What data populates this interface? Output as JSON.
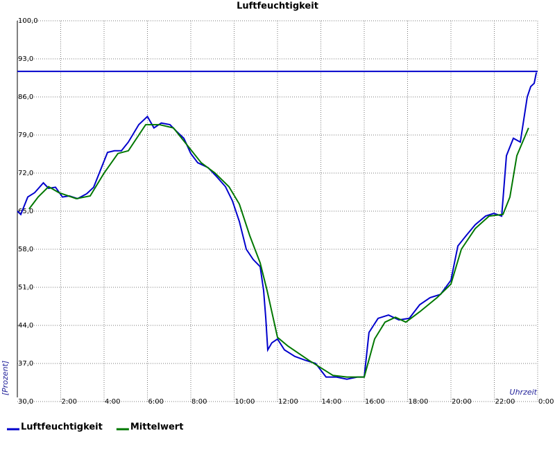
{
  "chart_data": {
    "type": "line",
    "title": "Luftfeuchtigkeit",
    "ylabel": "[Prozent]",
    "xlabel": "Uhrzeit",
    "xlim": [
      0,
      24
    ],
    "ylim": [
      30,
      100
    ],
    "yticks": [
      {
        "value": 30,
        "label": "30,0"
      },
      {
        "value": 37,
        "label": "37,0"
      },
      {
        "value": 44,
        "label": "44,0"
      },
      {
        "value": 51,
        "label": "51,0"
      },
      {
        "value": 58,
        "label": "58,0"
      },
      {
        "value": 65,
        "label": "65,0"
      },
      {
        "value": 72,
        "label": "72,0"
      },
      {
        "value": 79,
        "label": "79,0"
      },
      {
        "value": 86,
        "label": "86,0"
      },
      {
        "value": 93,
        "label": "93,0"
      },
      {
        "value": 100,
        "label": "100,0"
      }
    ],
    "xticks": [
      {
        "value": 2,
        "label": "2:00"
      },
      {
        "value": 4,
        "label": "4:00"
      },
      {
        "value": 6,
        "label": "6:00"
      },
      {
        "value": 8,
        "label": "8:00"
      },
      {
        "value": 10,
        "label": "10:00"
      },
      {
        "value": 12,
        "label": "12:00"
      },
      {
        "value": 14,
        "label": "14:00"
      },
      {
        "value": 16,
        "label": "16:00"
      },
      {
        "value": 18,
        "label": "18:00"
      },
      {
        "value": 20,
        "label": "20:00"
      },
      {
        "value": 22,
        "label": "22:00"
      },
      {
        "value": 24,
        "label": "0:00"
      }
    ],
    "grid": true,
    "hline": {
      "value": 90.7,
      "color": "#0000cc"
    },
    "series": [
      {
        "name": "Luftfeuchtigkeit",
        "color": "#0000cc",
        "x": [
          0,
          0.16,
          0.48,
          0.8,
          1.2,
          1.44,
          1.76,
          2.08,
          2.4,
          2.78,
          3.2,
          3.52,
          3.84,
          4.16,
          4.48,
          4.8,
          5.12,
          5.6,
          6.0,
          6.3,
          6.64,
          7.04,
          7.36,
          7.68,
          8.0,
          8.32,
          8.8,
          9.18,
          9.6,
          9.92,
          10.24,
          10.56,
          10.88,
          11.2,
          11.36,
          11.46,
          11.55,
          11.74,
          12.0,
          12.32,
          12.8,
          13.28,
          13.76,
          14.24,
          14.72,
          15.2,
          15.68,
          16.0,
          16.22,
          16.64,
          17.12,
          17.6,
          18.08,
          18.56,
          19.04,
          19.52,
          20.0,
          20.32,
          20.7,
          21.12,
          21.6,
          21.98,
          22.34,
          22.56,
          22.88,
          23.2,
          23.52,
          23.68,
          23.84,
          23.94
        ],
        "values": [
          65.0,
          64.4,
          67.6,
          68.4,
          70.2,
          69.2,
          69.4,
          67.6,
          67.8,
          67.3,
          68.2,
          69.4,
          72.6,
          75.8,
          76.1,
          76.1,
          77.7,
          80.9,
          82.4,
          80.3,
          81.2,
          80.9,
          79.6,
          78.4,
          75.6,
          73.9,
          73.0,
          71.4,
          69.5,
          66.9,
          63.1,
          58.0,
          56.1,
          54.8,
          50.4,
          45.3,
          39.5,
          40.8,
          41.5,
          39.5,
          38.3,
          37.6,
          37.0,
          34.5,
          34.5,
          34.1,
          34.5,
          34.5,
          42.7,
          45.3,
          45.9,
          45.0,
          45.3,
          47.8,
          49.1,
          49.7,
          52.3,
          58.6,
          60.5,
          62.5,
          64.1,
          64.6,
          64.1,
          75.2,
          78.4,
          77.7,
          86.0,
          87.9,
          88.5,
          90.5
        ]
      },
      {
        "name": "Mittelwert",
        "color": "#007700",
        "x": [
          0.54,
          0.96,
          1.44,
          1.92,
          2.72,
          3.36,
          4.0,
          4.64,
          5.12,
          5.92,
          6.56,
          7.2,
          7.84,
          8.48,
          9.12,
          9.76,
          10.24,
          10.72,
          11.2,
          11.52,
          12.0,
          12.48,
          12.96,
          13.44,
          13.92,
          14.56,
          15.2,
          16.0,
          16.48,
          16.96,
          17.44,
          17.92,
          18.56,
          19.36,
          20.0,
          20.48,
          21.12,
          21.76,
          22.4,
          22.72,
          23.04,
          23.58
        ],
        "values": [
          65.4,
          67.6,
          69.5,
          68.4,
          67.3,
          67.8,
          72.0,
          75.6,
          76.1,
          80.9,
          80.9,
          80.3,
          77.1,
          73.9,
          72.0,
          69.5,
          66.3,
          60.5,
          55.5,
          50.4,
          41.8,
          40.2,
          38.9,
          37.6,
          36.4,
          34.8,
          34.5,
          34.5,
          41.5,
          44.6,
          45.5,
          44.6,
          46.5,
          49.1,
          51.6,
          58.0,
          61.8,
          64.1,
          64.4,
          67.6,
          75.2,
          80.3
        ]
      }
    ]
  }
}
